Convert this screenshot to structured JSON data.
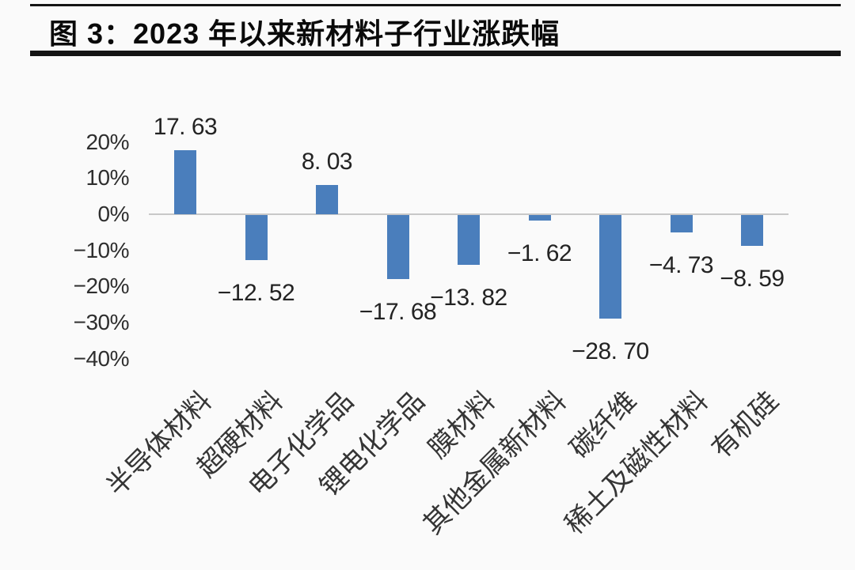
{
  "header": {
    "title": "图 3：2023 年以来新材料子行业涨跌幅"
  },
  "chart_data": {
    "type": "bar",
    "title": "2023 年以来新材料子行业涨跌幅",
    "categories": [
      "半导体材料",
      "超硬材料",
      "电子化学品",
      "锂电化学品",
      "膜材料",
      "其他金属新材料",
      "碳纤维",
      "稀土及磁性材料",
      "有机硅"
    ],
    "values": [
      17.63,
      -12.52,
      8.03,
      -17.68,
      -13.82,
      -1.62,
      -28.7,
      -4.73,
      -8.59
    ],
    "value_labels": [
      "17. 63",
      "−12. 52",
      "8. 03",
      "−17. 68",
      "−13. 82",
      "−1. 62",
      "−28. 70",
      "−4. 73",
      "−8. 59"
    ],
    "xlabel": "",
    "ylabel": "",
    "unit": "%",
    "y_ticks": [
      20,
      10,
      0,
      -10,
      -20,
      -30,
      -40
    ],
    "y_tick_labels": [
      "20%",
      "10%",
      "0%",
      "−10%",
      "−20%",
      "−30%",
      "−40%"
    ],
    "ylim": [
      -40,
      25
    ],
    "grid": false,
    "legend_position": "none",
    "bar_color": "#4A7EBC",
    "axis_line_color": "#c8c8c8"
  }
}
